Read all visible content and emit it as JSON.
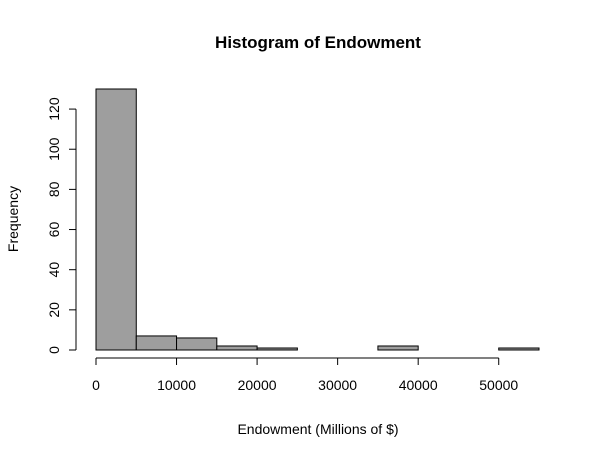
{
  "chart_data": {
    "type": "bar",
    "title": "Histogram of Endowment",
    "xlabel": "Endowment (Millions of $)",
    "ylabel": "Frequency",
    "bin_edges": [
      0,
      5000,
      10000,
      15000,
      20000,
      25000,
      30000,
      35000,
      40000,
      45000,
      50000,
      55000
    ],
    "values": [
      130,
      7,
      6,
      2,
      1,
      0,
      0,
      2,
      0,
      0,
      1
    ],
    "xlim": [
      0,
      55000
    ],
    "ylim": [
      0,
      130
    ],
    "x_ticks": [
      0,
      10000,
      20000,
      30000,
      40000,
      50000
    ],
    "x_tick_labels": [
      "0",
      "10000",
      "20000",
      "30000",
      "40000",
      "50000"
    ],
    "y_ticks": [
      0,
      20,
      40,
      60,
      80,
      100,
      120
    ],
    "y_tick_labels": [
      "0",
      "20",
      "40",
      "60",
      "80",
      "100",
      "120"
    ],
    "bar_color": "#9e9e9e",
    "grid": false,
    "legend": "none"
  }
}
